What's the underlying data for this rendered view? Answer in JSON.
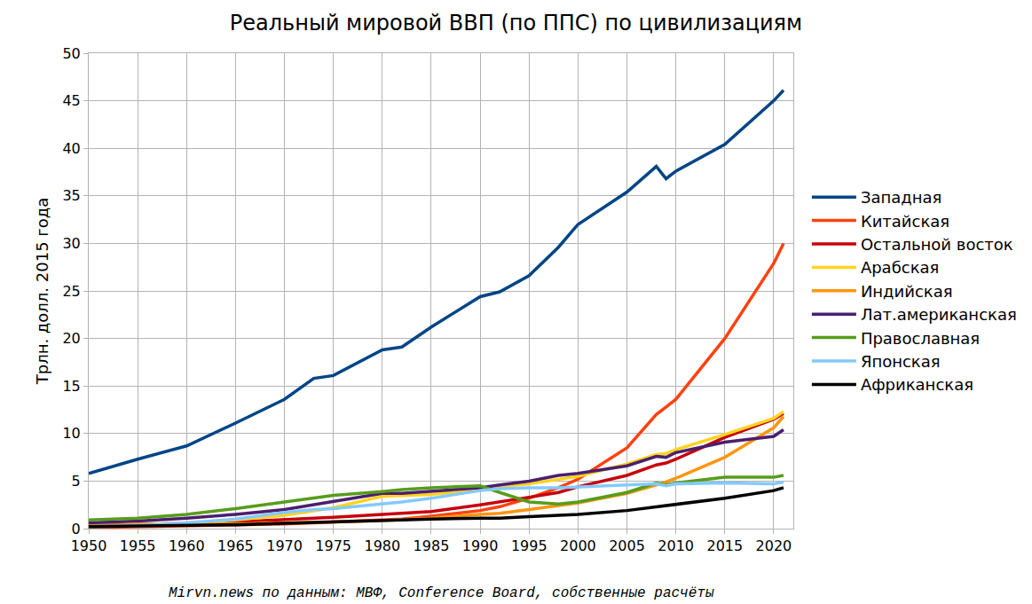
{
  "chart_data": {
    "type": "line",
    "title": "Реальный мировой ВВП (по ППС) по цивилизациям",
    "y_label": "Трлн. долл. 2015 года",
    "annotations": [
      "Mirvn.news по данным: МВФ, Conference Board, собственные расчёты"
    ],
    "x": [
      1950,
      1955,
      1960,
      1965,
      1970,
      1973,
      1975,
      1980,
      1982,
      1985,
      1990,
      1992,
      1995,
      1998,
      2000,
      2005,
      2008,
      2009,
      2010,
      2015,
      2020,
      2021
    ],
    "xlim": [
      1950,
      2022
    ],
    "xticks": [
      1950,
      1955,
      1960,
      1965,
      1970,
      1975,
      1980,
      1985,
      1990,
      1995,
      2000,
      2005,
      2010,
      2015,
      2020
    ],
    "ylim": [
      0,
      50
    ],
    "yticks": [
      0,
      5,
      10,
      15,
      20,
      25,
      30,
      35,
      40,
      45,
      50
    ],
    "grid": true,
    "legend": "right",
    "series": [
      {
        "name": "Западная",
        "color": "#004586",
        "values": [
          5.8,
          7.3,
          8.7,
          11.1,
          13.6,
          15.8,
          16.1,
          18.8,
          19.1,
          21.2,
          24.4,
          24.9,
          26.6,
          29.6,
          32.0,
          35.4,
          38.1,
          36.8,
          37.6,
          40.4,
          45.0,
          46.1
        ]
      },
      {
        "name": "Китайская",
        "color": "#ff420e",
        "values": [
          0.1,
          0.2,
          0.3,
          0.35,
          0.5,
          0.6,
          0.7,
          0.9,
          1.0,
          1.3,
          1.9,
          2.3,
          3.2,
          4.3,
          5.2,
          8.5,
          12.0,
          12.8,
          13.6,
          20.0,
          27.9,
          30.0
        ]
      },
      {
        "name": "Остальной восток",
        "color": "#c5000b",
        "values": [
          0.3,
          0.4,
          0.55,
          0.7,
          0.9,
          1.1,
          1.2,
          1.5,
          1.6,
          1.8,
          2.5,
          2.8,
          3.3,
          3.8,
          4.4,
          5.6,
          6.7,
          6.9,
          7.3,
          9.6,
          11.5,
          12.1
        ]
      },
      {
        "name": "Арабская",
        "color": "#ffd320",
        "values": [
          0.3,
          0.4,
          0.6,
          0.9,
          1.4,
          1.9,
          2.2,
          3.4,
          3.5,
          3.6,
          4.1,
          4.4,
          4.7,
          5.2,
          5.5,
          6.8,
          7.8,
          7.9,
          8.3,
          9.9,
          11.6,
          12.3
        ]
      },
      {
        "name": "Индийская",
        "color": "#ff950e",
        "values": [
          0.3,
          0.35,
          0.4,
          0.5,
          0.6,
          0.65,
          0.7,
          0.85,
          0.95,
          1.1,
          1.5,
          1.6,
          2.0,
          2.4,
          2.7,
          3.7,
          4.6,
          4.9,
          5.3,
          7.5,
          10.6,
          11.8
        ]
      },
      {
        "name": "Лат.американская",
        "color": "#4b1f6f",
        "values": [
          0.6,
          0.8,
          1.1,
          1.5,
          2.0,
          2.5,
          2.8,
          3.7,
          3.7,
          3.9,
          4.3,
          4.6,
          5.0,
          5.6,
          5.8,
          6.6,
          7.6,
          7.5,
          8.0,
          9.1,
          9.7,
          10.4
        ]
      },
      {
        "name": "Православная",
        "color": "#579d1c",
        "values": [
          0.9,
          1.1,
          1.5,
          2.1,
          2.8,
          3.2,
          3.5,
          3.9,
          4.1,
          4.3,
          4.5,
          3.8,
          2.8,
          2.6,
          2.8,
          3.8,
          4.8,
          4.6,
          4.8,
          5.4,
          5.4,
          5.6
        ]
      },
      {
        "name": "Японская",
        "color": "#83caff",
        "values": [
          0.2,
          0.3,
          0.6,
          1.0,
          1.7,
          2.0,
          2.1,
          2.6,
          2.8,
          3.2,
          4.0,
          4.2,
          4.3,
          4.3,
          4.4,
          4.6,
          4.7,
          4.5,
          4.7,
          4.8,
          4.7,
          4.9
        ]
      },
      {
        "name": "Африканская",
        "color": "#000000",
        "values": [
          0.2,
          0.25,
          0.3,
          0.4,
          0.55,
          0.65,
          0.7,
          0.9,
          0.95,
          1.0,
          1.1,
          1.1,
          1.25,
          1.4,
          1.5,
          1.9,
          2.3,
          2.4,
          2.5,
          3.2,
          4.0,
          4.3
        ]
      }
    ]
  }
}
